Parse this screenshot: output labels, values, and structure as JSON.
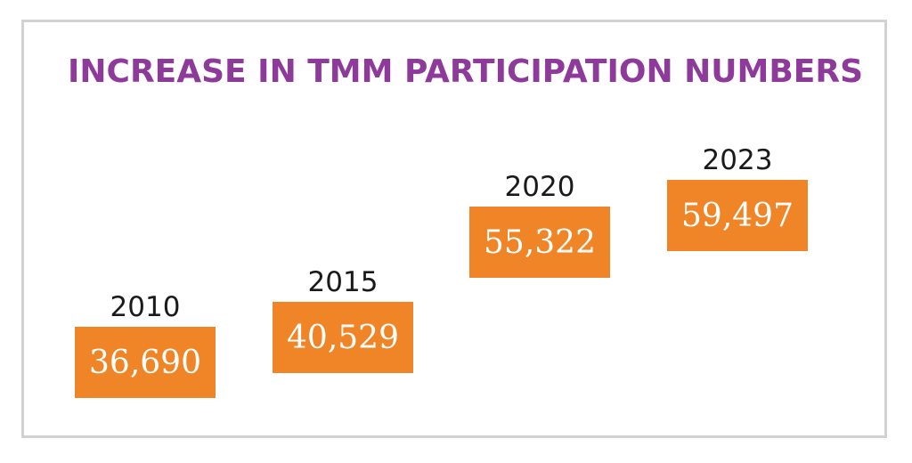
{
  "colors": {
    "title": "#8e3a9b",
    "box": "#ef8526",
    "frame": "#d2d2d2"
  },
  "chart_data": {
    "type": "bar",
    "title": "INCREASE IN TMM PARTICIPATION NUMBERS",
    "categories": [
      "2010",
      "2015",
      "2020",
      "2023"
    ],
    "values": [
      36690,
      40529,
      55322,
      59497
    ],
    "value_labels": [
      "36,690",
      "40,529",
      "55,322",
      "59,497"
    ],
    "grid": false
  }
}
